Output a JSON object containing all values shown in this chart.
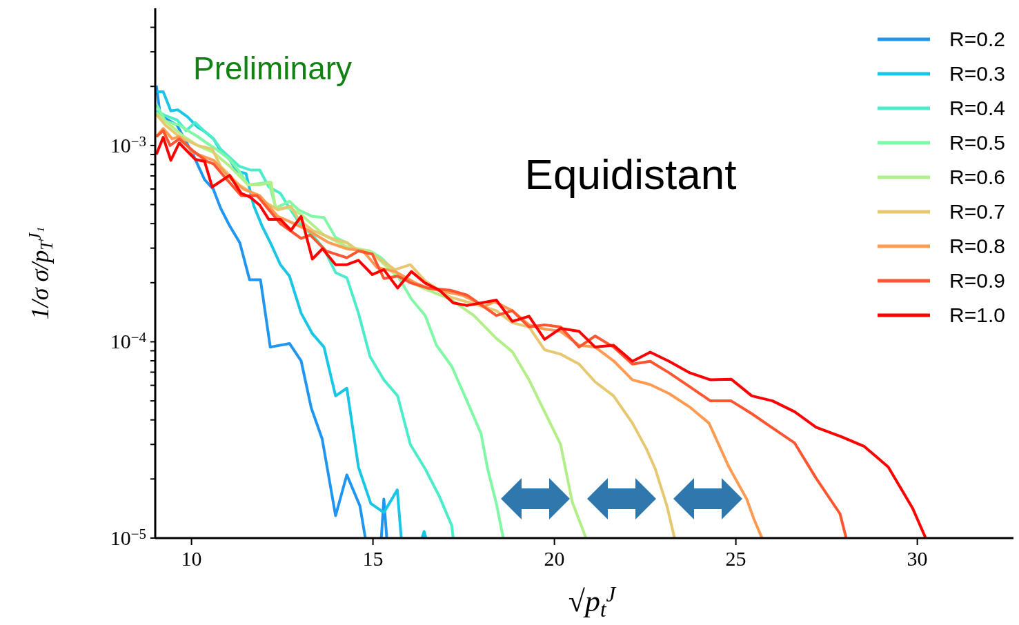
{
  "chart_data": {
    "type": "line",
    "xlabel": "√p$_{t}$$^{J}$",
    "ylabel": "1/σ σ/p$_{T}$$^{J₁}$",
    "annotations": [
      "Preliminary",
      "Equidistant"
    ],
    "xlim": [
      9,
      32.65
    ],
    "xticks": [
      10,
      15,
      20,
      25,
      30
    ],
    "ylim": [
      1e-05,
      0.005
    ],
    "log": true,
    "yticks": [
      {
        "value": 1e-05,
        "label": "10$^{−5}$"
      },
      {
        "value": 2e-05,
        "label": null
      },
      {
        "value": 3e-05,
        "label": null
      },
      {
        "value": 4e-05,
        "label": null
      },
      {
        "value": 5e-05,
        "label": null
      },
      {
        "value": 6e-05,
        "label": null
      },
      {
        "value": 7e-05,
        "label": null
      },
      {
        "value": 8e-05,
        "label": null
      },
      {
        "value": 9e-05,
        "label": null
      },
      {
        "value": 0.0001,
        "label": "10$^{−4}$"
      },
      {
        "value": 0.0002,
        "label": null
      },
      {
        "value": 0.0003,
        "label": null
      },
      {
        "value": 0.0004,
        "label": null
      },
      {
        "value": 0.0005,
        "label": null
      },
      {
        "value": 0.0006,
        "label": null
      },
      {
        "value": 0.0007,
        "label": null
      },
      {
        "value": 0.0008,
        "label": null
      },
      {
        "value": 0.0009,
        "label": null
      },
      {
        "value": 0.001,
        "label": "10$^{−3}$"
      },
      {
        "value": 0.002,
        "label": null
      },
      {
        "value": 0.003,
        "label": null
      },
      {
        "value": 0.004,
        "label": null
      }
    ],
    "legend": "top right",
    "series": [
      {
        "name": "R=0.2",
        "color": "#2196f0",
        "x": [
          9.03,
          9.14,
          9.6,
          10.04,
          10.36,
          10.6,
          10.8,
          11.05,
          11.33,
          11.6,
          11.9,
          12.17,
          12.7,
          13.02,
          13.3,
          13.6,
          13.97,
          14.28,
          14.64,
          14.79,
          15.0,
          15.23,
          15.3,
          15.38
        ],
        "values": [
          0.00202,
          0.00142,
          0.00127,
          0.0009,
          0.00067,
          0.0006,
          0.00048,
          0.00039,
          0.00032,
          0.000207,
          0.000207,
          9.4e-05,
          9.8e-05,
          8e-05,
          4.6e-05,
          3.2e-05,
          1.3e-05,
          2.1e-05,
          1.46e-05,
          1e-05,
          null,
          1e-05,
          1.58e-05,
          1e-05
        ]
      },
      {
        "name": "R=0.3",
        "color": "#19c6e6",
        "x": [
          9.03,
          9.22,
          9.43,
          9.62,
          9.89,
          10.17,
          10.36,
          10.61,
          10.8,
          11.05,
          11.24,
          11.5,
          11.71,
          11.94,
          12.19,
          12.45,
          12.7,
          13.02,
          13.33,
          13.65,
          13.97,
          14.28,
          14.6,
          14.94,
          15.3,
          15.67,
          15.78,
          16.0,
          16.35,
          16.41,
          16.46
        ],
        "values": [
          0.00188,
          0.00188,
          0.0015,
          0.00152,
          0.0014,
          0.00124,
          0.00118,
          0.00108,
          0.00094,
          0.00085,
          0.00074,
          0.00072,
          0.000496,
          0.00039,
          0.000315,
          0.000247,
          0.000216,
          0.00014,
          0.00011,
          9.4e-05,
          5.3e-05,
          5.8e-05,
          2.3e-05,
          1.5e-05,
          1.35e-05,
          1.76e-05,
          1e-05,
          null,
          1e-05,
          1.08e-05,
          1e-05
        ]
      },
      {
        "name": "R=0.4",
        "color": "#4ceccb",
        "x": [
          9.03,
          9.28,
          9.6,
          9.85,
          10.1,
          10.36,
          10.61,
          10.8,
          11.05,
          11.31,
          11.62,
          11.88,
          12.13,
          12.45,
          12.7,
          13.02,
          13.33,
          13.65,
          13.97,
          14.28,
          14.6,
          14.92,
          15.3,
          15.68,
          16.03,
          16.44,
          16.83,
          17.17,
          17.21
        ],
        "values": [
          0.0015,
          0.00142,
          0.00135,
          0.00119,
          0.00131,
          0.00118,
          0.00108,
          0.00096,
          0.00087,
          0.000785,
          0.00075,
          0.00075,
          0.000615,
          0.00057,
          0.00048,
          0.00039,
          0.00035,
          0.000298,
          0.000225,
          0.000212,
          0.00014,
          8.4e-05,
          6.4e-05,
          5.3e-05,
          3e-05,
          2.25e-05,
          1.63e-05,
          1.16e-05,
          1e-05
        ]
      },
      {
        "name": "R=0.5",
        "color": "#80f8a6",
        "x": [
          9.03,
          9.28,
          9.66,
          9.9,
          10.17,
          10.42,
          10.67,
          11.05,
          11.31,
          11.56,
          11.88,
          12.13,
          12.32,
          12.7,
          12.95,
          13.33,
          13.65,
          13.97,
          14.28,
          14.6,
          14.92,
          15.23,
          15.61,
          16.06,
          16.44,
          16.75,
          17.17,
          17.59,
          17.98,
          18.16,
          18.4,
          18.59
        ],
        "values": [
          0.00162,
          0.00133,
          0.00127,
          0.00119,
          0.00111,
          0.00103,
          0.00096,
          0.00085,
          0.00074,
          0.00063,
          0.00064,
          0.00065,
          0.00048,
          0.00052,
          0.00047,
          0.000435,
          0.00043,
          0.00034,
          0.00032,
          0.00029,
          0.00029,
          0.000268,
          0.000228,
          0.000165,
          0.000136,
          9.6e-05,
          7.5e-05,
          5e-05,
          3.4e-05,
          2.25e-05,
          1.5e-05,
          1e-05
        ]
      },
      {
        "name": "R=0.6",
        "color": "#b3ef88",
        "x": [
          9.03,
          9.41,
          9.79,
          10.17,
          10.61,
          11.05,
          11.56,
          11.88,
          12.19,
          12.32,
          12.7,
          13.02,
          13.65,
          14.28,
          14.92,
          15.61,
          16.37,
          17.13,
          17.78,
          18.4,
          18.84,
          19.3,
          19.73,
          20.17,
          20.49,
          20.87
        ],
        "values": [
          0.00146,
          0.00127,
          0.00111,
          0.001,
          0.00092,
          0.000785,
          0.00063,
          0.00063,
          0.00065,
          0.00048,
          0.00048,
          0.000445,
          0.00035,
          0.000305,
          0.00029,
          0.00022,
          0.000188,
          0.000165,
          0.000136,
          0.000104,
          8.9e-05,
          6.4e-05,
          4.4e-05,
          3e-05,
          1.53e-05,
          1e-05
        ]
      },
      {
        "name": "R=0.7",
        "color": "#e6c870",
        "x": [
          9.03,
          9.28,
          9.66,
          10.17,
          10.57,
          10.8,
          11.31,
          11.69,
          12.07,
          12.38,
          12.74,
          12.95,
          13.33,
          13.97,
          14.28,
          14.6,
          14.98,
          15.61,
          16.03,
          16.44,
          17.13,
          17.78,
          18.4,
          18.84,
          19.3,
          19.73,
          20.17,
          20.68,
          21.12,
          21.63,
          22.15,
          22.53,
          22.78,
          23.1,
          23.31
        ],
        "values": [
          0.00144,
          0.00127,
          0.00111,
          0.001,
          0.00096,
          0.000785,
          0.00063,
          0.00057,
          0.00051,
          0.00047,
          0.00049,
          0.00042,
          0.00037,
          0.00033,
          0.00032,
          0.00029,
          0.00028,
          0.000233,
          0.000247,
          0.000204,
          0.000169,
          0.000156,
          0.000144,
          0.000125,
          0.000119,
          9.1e-05,
          8.65e-05,
          7.7e-05,
          6.25e-05,
          5.3e-05,
          3.85e-05,
          2.86e-05,
          2.25e-05,
          1.46e-05,
          1e-05
        ]
      },
      {
        "name": "R=0.8",
        "color": "#ff9a52",
        "x": [
          9.03,
          9.22,
          9.47,
          9.66,
          10.04,
          10.61,
          11.05,
          11.43,
          11.88,
          12.38,
          12.7,
          13.21,
          13.78,
          14.28,
          14.73,
          15.11,
          15.61,
          16.18,
          16.5,
          17.45,
          18.08,
          18.35,
          18.84,
          19.3,
          19.73,
          20.17,
          20.68,
          21.12,
          21.63,
          22.15,
          22.64,
          23.16,
          23.73,
          24.26,
          24.81,
          25.3,
          25.49,
          25.72
        ],
        "values": [
          0.00111,
          0.00122,
          0.00108,
          0.00111,
          0.00092,
          0.00084,
          0.000685,
          0.0006,
          0.000555,
          0.000435,
          0.00041,
          0.00037,
          0.00032,
          0.000298,
          0.00029,
          0.000239,
          0.000228,
          0.000199,
          0.000188,
          0.000173,
          0.000152,
          0.00016,
          0.000144,
          0.000122,
          0.000116,
          0.000113,
          9.6e-05,
          9.4e-05,
          8e-05,
          6.4e-05,
          6.05e-05,
          5.45e-05,
          4.65e-05,
          3.85e-05,
          2.3e-05,
          1.58e-05,
          1.26e-05,
          1e-05
        ]
      },
      {
        "name": "R=0.9",
        "color": "#ff5530",
        "x": [
          9.03,
          9.22,
          9.41,
          9.66,
          10.04,
          10.42,
          10.61,
          10.93,
          11.37,
          11.81,
          12.19,
          12.45,
          13.02,
          13.27,
          13.71,
          14.28,
          14.6,
          14.98,
          15.3,
          15.68,
          16.06,
          16.5,
          17.13,
          17.59,
          18.4,
          18.84,
          19.3,
          19.73,
          20.17,
          20.68,
          21.12,
          21.63,
          22.15,
          22.64,
          23.16,
          23.73,
          24.3,
          24.87,
          25.44,
          26.01,
          26.62,
          27.21,
          27.87,
          28.04
        ],
        "values": [
          0.00111,
          0.00119,
          0.001,
          0.00108,
          0.00094,
          0.00083,
          0.000805,
          0.000685,
          0.000555,
          0.000555,
          0.000457,
          0.0004,
          0.000336,
          0.00035,
          0.00029,
          0.000268,
          0.00029,
          0.00028,
          0.00021,
          0.000216,
          0.000199,
          0.000188,
          0.000183,
          0.000173,
          0.000136,
          0.000144,
          0.000119,
          0.000122,
          0.000119,
          9.4e-05,
          0.000107,
          9.4e-05,
          7.7e-05,
          7.95e-05,
          6.95e-05,
          5.9e-05,
          5e-05,
          5e-05,
          4.3e-05,
          3.64e-05,
          3.05e-05,
          2.02e-05,
          1.33e-05,
          1e-05
        ]
      },
      {
        "name": "R=1.0",
        "color": "#ff0000",
        "x": [
          9.03,
          9.22,
          9.43,
          9.66,
          10.1,
          10.36,
          10.57,
          11.05,
          11.37,
          11.62,
          11.88,
          12.13,
          12.45,
          12.74,
          13.02,
          13.33,
          13.61,
          13.97,
          14.28,
          14.6,
          14.98,
          15.3,
          15.68,
          16.06,
          16.44,
          16.83,
          17.21,
          17.59,
          18.4,
          18.84,
          19.3,
          19.73,
          20.17,
          20.68,
          21.12,
          21.63,
          22.15,
          22.64,
          23.16,
          23.73,
          24.3,
          24.87,
          25.44,
          26.01,
          26.62,
          27.21,
          27.91,
          28.54,
          29.2,
          29.87,
          30.23
        ],
        "values": [
          0.0009,
          0.0011,
          0.00084,
          0.00103,
          0.00085,
          0.00083,
          0.000615,
          0.000705,
          0.00057,
          0.000545,
          0.000496,
          0.00042,
          0.00042,
          0.00037,
          0.000435,
          0.000264,
          0.000298,
          0.000247,
          0.000247,
          0.00026,
          0.00022,
          0.000233,
          0.000188,
          0.000228,
          0.000199,
          0.000183,
          0.000158,
          0.000153,
          0.000163,
          0.000127,
          0.000135,
          0.000103,
          0.000117,
          0.000113,
          9.4e-05,
          9.6e-05,
          7.95e-05,
          8.85e-05,
          7.95e-05,
          6.95e-05,
          6.4e-05,
          6.45e-05,
          5.3e-05,
          5e-05,
          4.4e-05,
          3.67e-05,
          3.28e-05,
          2.93e-05,
          2.3e-05,
          1.42e-05,
          1e-05
        ]
      }
    ]
  }
}
